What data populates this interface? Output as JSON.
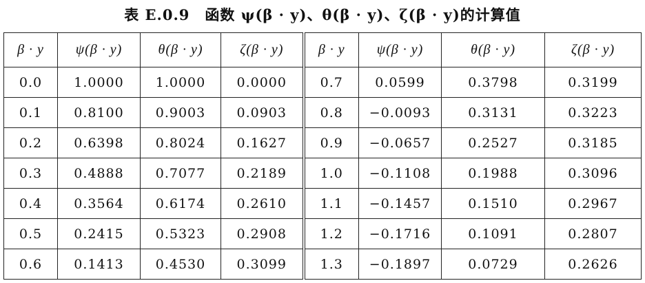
{
  "title": "表 E.0.9　函数 ψ(β · y)、θ(β · y)、ζ(β · y)的计算值",
  "table": {
    "headers": [
      "β · y",
      "ψ(β · y)",
      "θ(β · y)",
      "ζ(β · y)",
      "β · y",
      "ψ(β · y)",
      "θ(β · y)",
      "ζ(β · y)"
    ],
    "rows": [
      [
        "0.0",
        "1.0000",
        "1.0000",
        "0.0000",
        "0.7",
        "0.0599",
        "0.3798",
        "0.3199"
      ],
      [
        "0.1",
        "0.8100",
        "0.9003",
        "0.0903",
        "0.8",
        "−0.0093",
        "0.3131",
        "0.3223"
      ],
      [
        "0.2",
        "0.6398",
        "0.8024",
        "0.1627",
        "0.9",
        "−0.0657",
        "0.2527",
        "0.3185"
      ],
      [
        "0.3",
        "0.4888",
        "0.7077",
        "0.2189",
        "1.0",
        "−0.1108",
        "0.1988",
        "0.3096"
      ],
      [
        "0.4",
        "0.3564",
        "0.6174",
        "0.2610",
        "1.1",
        "−0.1457",
        "0.1510",
        "0.2967"
      ],
      [
        "0.5",
        "0.2415",
        "0.5323",
        "0.2908",
        "1.2",
        "−0.1716",
        "0.1091",
        "0.2807"
      ],
      [
        "0.6",
        "0.1413",
        "0.4530",
        "0.3099",
        "1.3",
        "−0.1897",
        "0.0729",
        "0.2626"
      ]
    ]
  }
}
